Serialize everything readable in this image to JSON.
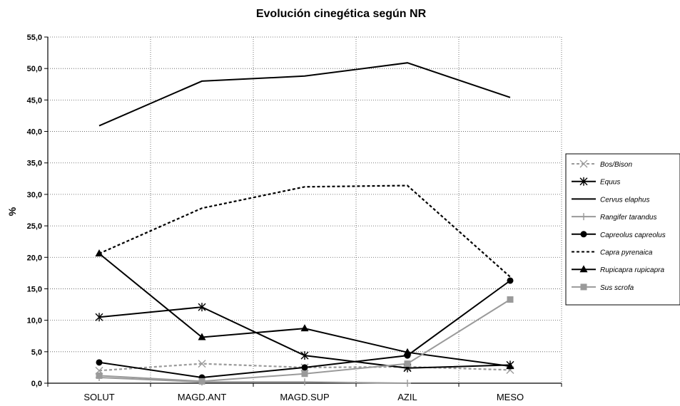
{
  "chart_data": {
    "type": "line",
    "title": "Evolución cinegética según NR",
    "xlabel": "",
    "ylabel": "%",
    "categories": [
      "SOLUT",
      "MAGD.ANT",
      "MAGD.SUP",
      "AZIL",
      "MESO"
    ],
    "ylim": [
      0,
      55
    ],
    "yticks": [
      "0,0",
      "5,0",
      "10,0",
      "15,0",
      "20,0",
      "25,0",
      "30,0",
      "35,0",
      "40,0",
      "45,0",
      "50,0",
      "55,0"
    ],
    "grid": "vertical and horizontal dotted",
    "legend_position": "right",
    "series": [
      {
        "name": "Bos/Bison",
        "values": [
          2.0,
          3.1,
          2.5,
          2.6,
          2.1
        ],
        "color": "#9a9a9a",
        "dash": "4,3",
        "marker": "x"
      },
      {
        "name": "Equus",
        "values": [
          10.5,
          12.1,
          4.4,
          2.4,
          2.9
        ],
        "color": "#000000",
        "dash": "",
        "marker": "star"
      },
      {
        "name": "Cervus elaphus",
        "values": [
          40.9,
          48.0,
          48.8,
          50.9,
          45.4
        ],
        "color": "#000000",
        "dash": "",
        "marker": "none"
      },
      {
        "name": "Rangifer tarandus",
        "values": [
          0.9,
          0.2,
          0.2,
          0.0,
          null
        ],
        "color": "#9a9a9a",
        "dash": "",
        "marker": "plus"
      },
      {
        "name": "Capreolus capreolus",
        "values": [
          3.3,
          0.9,
          2.5,
          4.4,
          16.3
        ],
        "color": "#000000",
        "dash": "",
        "marker": "circle"
      },
      {
        "name": "Capra pyrenaica",
        "values": [
          20.6,
          27.8,
          31.2,
          31.4,
          16.9
        ],
        "color": "#000000",
        "dash": "4,3",
        "marker": "none"
      },
      {
        "name": "Rupicapra rupicapra",
        "values": [
          20.6,
          7.3,
          8.7,
          4.9,
          2.7
        ],
        "color": "#000000",
        "dash": "",
        "marker": "triangle"
      },
      {
        "name": "Sus scrofa",
        "values": [
          1.2,
          0.3,
          1.5,
          3.1,
          13.3
        ],
        "color": "#9a9a9a",
        "dash": "",
        "marker": "square"
      }
    ]
  }
}
